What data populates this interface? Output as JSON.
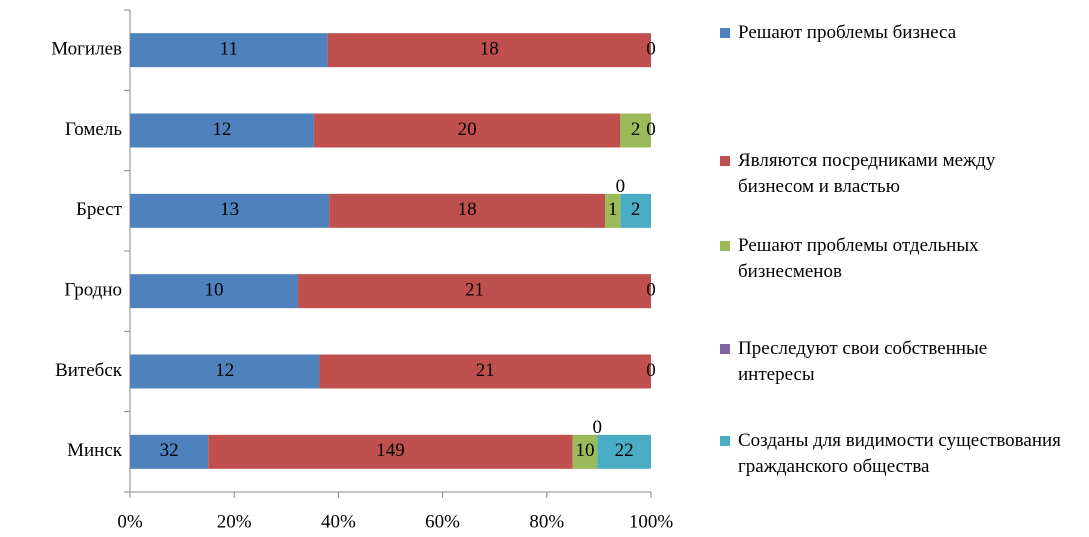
{
  "chart_data": {
    "type": "bar",
    "orientation": "horizontal",
    "stacking": "percent",
    "categories": [
      "Минск",
      "Витебск",
      "Гродно",
      "Брест",
      "Гомель",
      "Могилев"
    ],
    "series": [
      {
        "name": "Решают проблемы бизнеса",
        "color": "#4f81bd",
        "values": [
          32,
          12,
          10,
          13,
          12,
          11
        ]
      },
      {
        "name": "Являются посредниками между бизнесом и властью",
        "color": "#c0504d",
        "values": [
          149,
          21,
          21,
          18,
          20,
          18
        ]
      },
      {
        "name": "Решают проблемы отдельных бизнесменов",
        "color": "#9bbb59",
        "values": [
          10,
          0,
          0,
          1,
          2,
          0
        ]
      },
      {
        "name": "Преследуют свои собственные интересы",
        "color": "#8064a2",
        "values": [
          0,
          null,
          null,
          0,
          0,
          null
        ]
      },
      {
        "name": "Созданы для видимости существования гражданского общества",
        "color": "#4bacc6",
        "values": [
          22,
          null,
          null,
          2,
          null,
          null
        ]
      }
    ],
    "xlim": [
      0,
      100
    ],
    "xticks": [
      {
        "value": 0,
        "label": "0%"
      },
      {
        "value": 20,
        "label": "20%"
      },
      {
        "value": 40,
        "label": "40%"
      },
      {
        "value": 60,
        "label": "60%"
      },
      {
        "value": 80,
        "label": "80%"
      },
      {
        "value": 100,
        "label": "100%"
      }
    ],
    "legend": "right"
  }
}
